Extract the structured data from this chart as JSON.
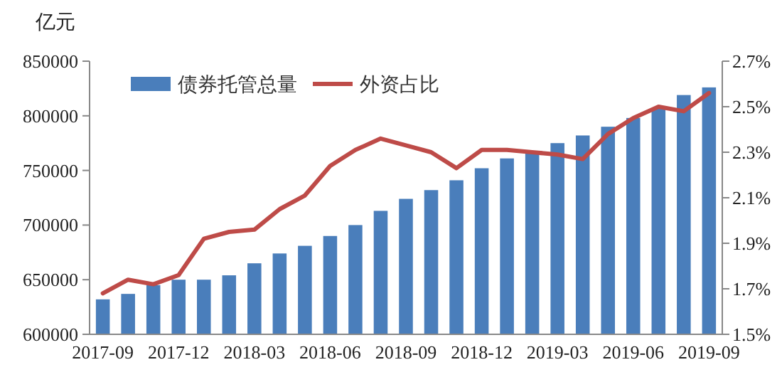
{
  "chart_data": {
    "type": "bar",
    "ylabel": "亿元",
    "categories": [
      "2017-09",
      null,
      null,
      "2017-12",
      null,
      null,
      "2018-03",
      null,
      null,
      "2018-06",
      null,
      null,
      "2018-09",
      null,
      null,
      "2018-12",
      null,
      null,
      "2019-03",
      null,
      null,
      "2019-06",
      null,
      null,
      "2019-09"
    ],
    "series": [
      {
        "name": "债券托管总量",
        "color": "#4a7ebb",
        "values": [
          632000,
          637000,
          645000,
          650000,
          650000,
          654000,
          665000,
          674000,
          681000,
          690000,
          700000,
          713000,
          724000,
          732000,
          741000,
          752000,
          761000,
          767000,
          775000,
          782000,
          790000,
          798000,
          807000,
          819000,
          826000
        ]
      },
      {
        "name": "外资占比",
        "type": "line",
        "axis": "y2",
        "color": "#be4b48",
        "values": [
          1.68,
          1.74,
          1.72,
          1.76,
          1.92,
          1.95,
          1.96,
          2.05,
          2.11,
          2.24,
          2.31,
          2.36,
          2.33,
          2.3,
          2.23,
          2.31,
          2.31,
          2.3,
          2.29,
          2.27,
          2.38,
          2.45,
          2.5,
          2.48,
          2.56
        ]
      }
    ],
    "ylim": [
      600000,
      850000
    ],
    "yticks": [
      600000,
      650000,
      700000,
      750000,
      800000,
      850000
    ],
    "y2lim": [
      1.5,
      2.7
    ],
    "y2ticks": [
      {
        "value": 1.5,
        "label": "1.5%"
      },
      {
        "value": 1.7,
        "label": "1.7%"
      },
      {
        "value": 1.9,
        "label": "1.9%"
      },
      {
        "value": 2.1,
        "label": "2.1%"
      },
      {
        "value": 2.3,
        "label": "2.3%"
      },
      {
        "value": 2.5,
        "label": "2.5%"
      },
      {
        "value": 2.7,
        "label": "2.7%"
      }
    ],
    "legend": "top left",
    "grid": false,
    "marker": "none",
    "line_style": "solid"
  }
}
